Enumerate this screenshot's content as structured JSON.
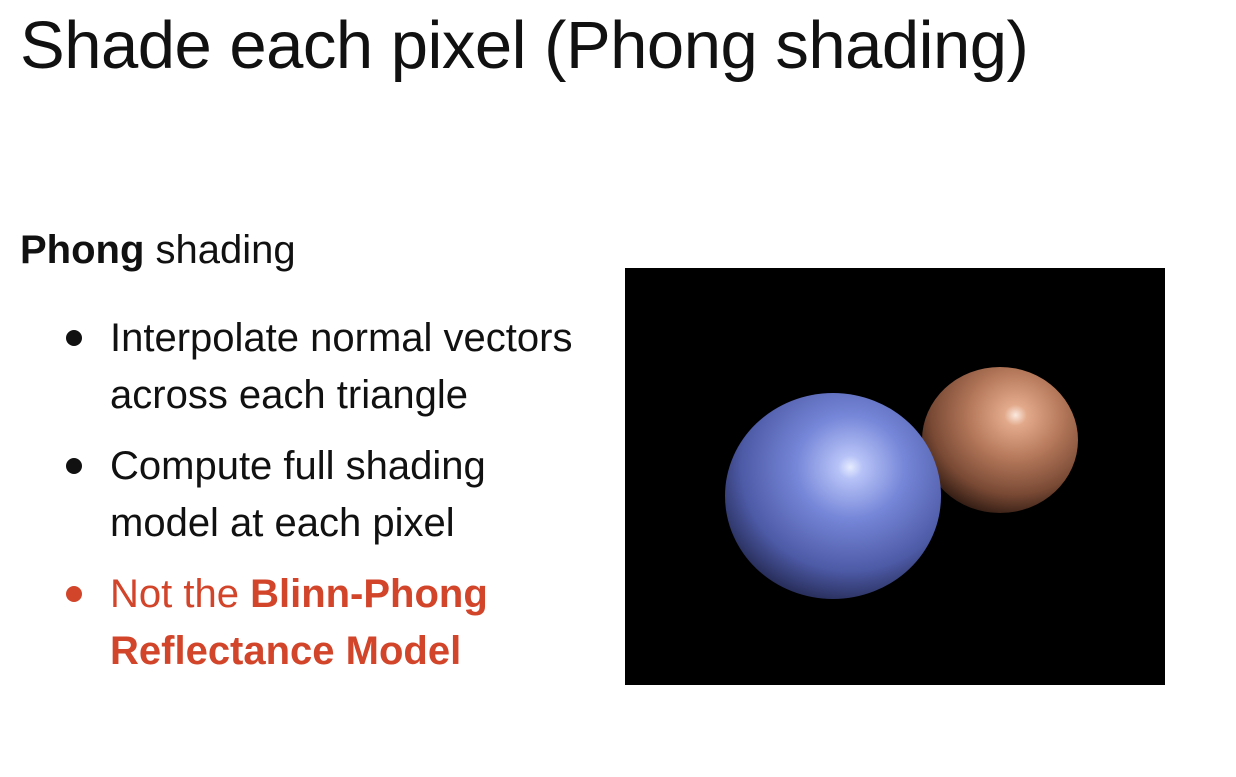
{
  "slide": {
    "title": "Shade each pixel (Phong shading)",
    "heading": {
      "strong": "Phong",
      "rest": " shading"
    },
    "bullets": [
      {
        "text": "Interpolate normal vectors across each triangle"
      },
      {
        "text": "Compute full shading model at each pixel"
      },
      {
        "prefix": "Not the ",
        "strong": "Blinn-Phong Reflectance Model"
      }
    ]
  },
  "render": {
    "background_color": "#000000",
    "spheres": [
      {
        "name": "blue-sphere",
        "color": "#6d7fd4"
      },
      {
        "name": "orange-sphere",
        "color": "#b77a5c"
      }
    ]
  },
  "colors": {
    "text": "#111111",
    "accent": "#d2452b"
  }
}
